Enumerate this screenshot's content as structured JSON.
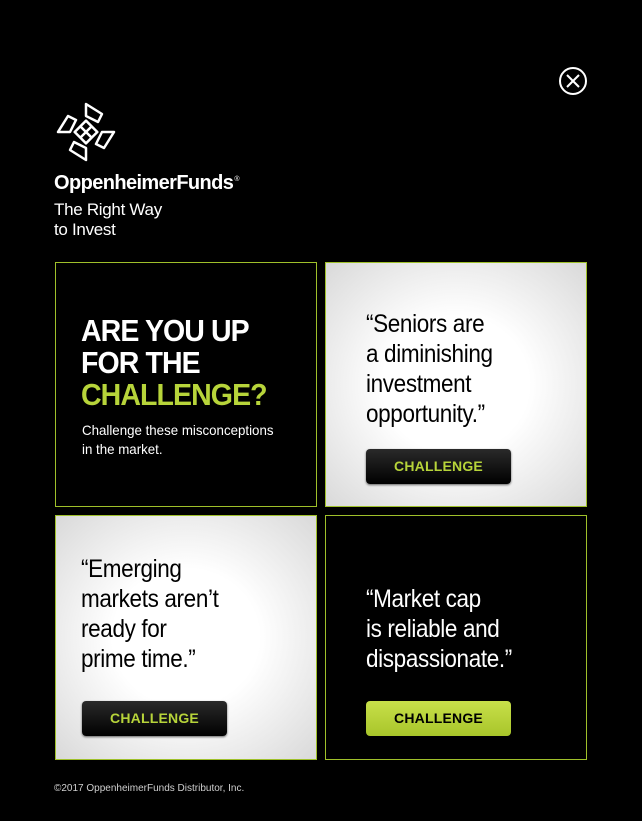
{
  "header": {
    "brand": "OppenheimerFunds",
    "registered": "®",
    "tagline_line1": "The Right Way",
    "tagline_line2": "to Invest"
  },
  "intro": {
    "headline_line1": "ARE YOU UP",
    "headline_line2": "FOR THE",
    "headline_line3": "CHALLENGE?",
    "subtext_line1": "Challenge these misconceptions",
    "subtext_line2": "in the market."
  },
  "cards": [
    {
      "quote_lines": [
        "“Seniors are",
        "a diminishing",
        "investment",
        "opportunity.”"
      ],
      "button_label": "CHALLENGE"
    },
    {
      "quote_lines": [
        "“Emerging",
        "markets aren’t",
        "ready for",
        "prime time.”"
      ],
      "button_label": "CHALLENGE"
    },
    {
      "quote_lines": [
        "“Market cap",
        "is reliable and",
        "dispassionate.”"
      ],
      "button_label": "CHALLENGE"
    }
  ],
  "footer": {
    "copyright": "©2017 OppenheimerFunds Distributor, Inc."
  },
  "colors": {
    "accent": "#b7d43a",
    "background": "#000000",
    "border": "#9fc02a"
  },
  "icons": {
    "close": "close-icon",
    "logo": "hands-logo-icon"
  }
}
